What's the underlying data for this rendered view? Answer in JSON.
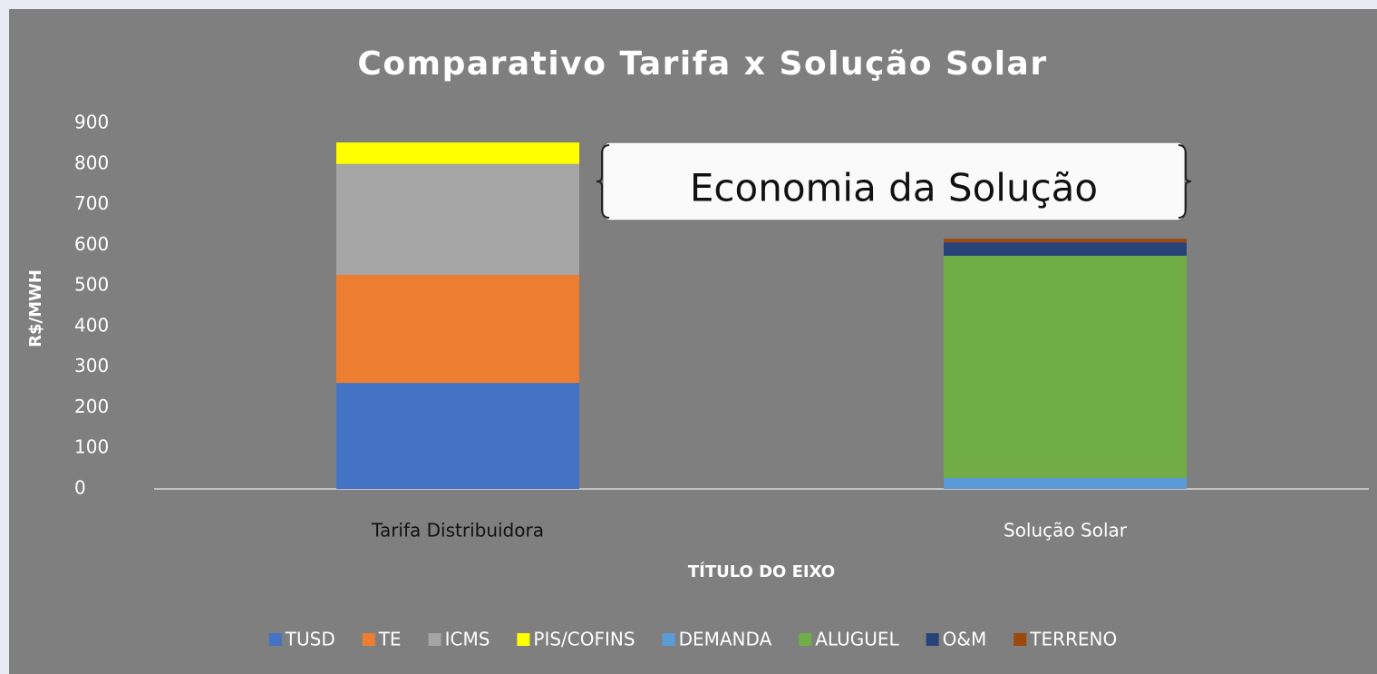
{
  "chart_data": {
    "type": "stacked_bar",
    "title": "Comparativo Tarifa x Solução Solar",
    "y_label": "R$/MWH",
    "x_label": "TÍTULO DO EIXO",
    "annotation": "Economia da Solução",
    "categories": [
      "Tarifa Distribuidora",
      "Solução Solar"
    ],
    "series": [
      {
        "name": "TUSD",
        "color": "#4472c4",
        "values": [
          261,
          0
        ]
      },
      {
        "name": "TE",
        "color": "#ed7d31",
        "values": [
          266,
          0
        ]
      },
      {
        "name": "ICMS",
        "color": "#a5a5a5",
        "values": [
          273,
          0
        ]
      },
      {
        "name": "PIS/COFINS",
        "color": "#ffff00",
        "values": [
          53,
          0
        ]
      },
      {
        "name": "DEMANDA",
        "color": "#5b9bd5",
        "values": [
          0,
          27
        ]
      },
      {
        "name": "ALUGUEL",
        "color": "#70ad47",
        "values": [
          0,
          547
        ]
      },
      {
        "name": "O&M",
        "color": "#264478",
        "values": [
          0,
          33
        ]
      },
      {
        "name": "TERRENO",
        "color": "#9e480e",
        "values": [
          0,
          9
        ]
      }
    ],
    "ylim": [
      0,
      900
    ],
    "yticks": [
      0,
      100,
      200,
      300,
      400,
      500,
      600,
      700,
      800,
      900
    ],
    "legend": "bottom"
  }
}
